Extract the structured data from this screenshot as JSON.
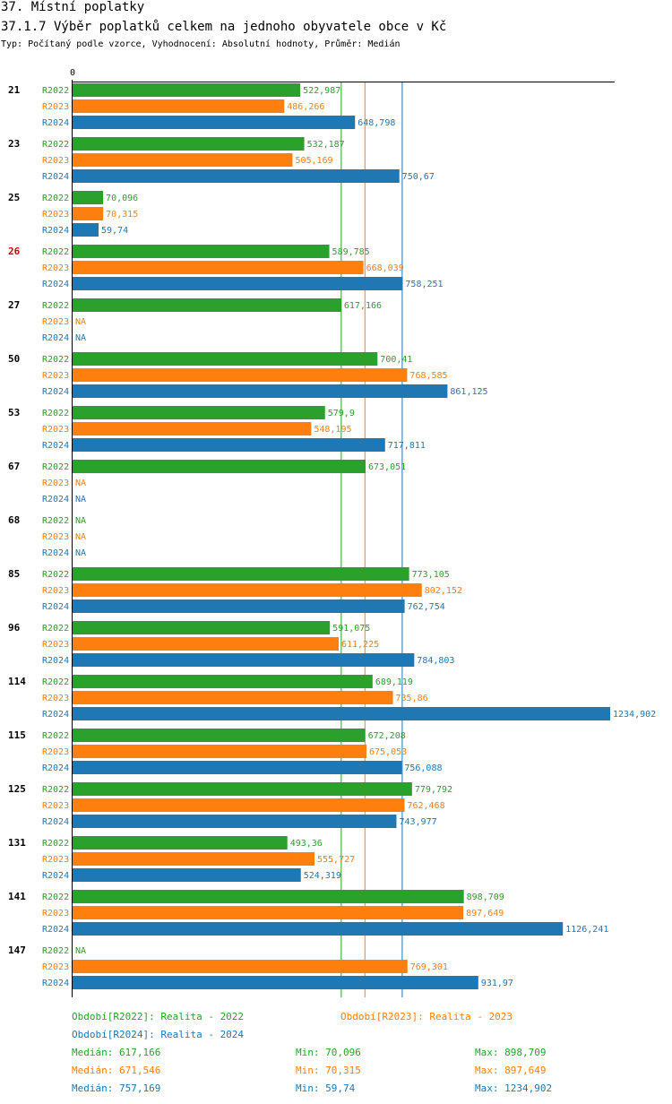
{
  "header": {
    "title": "37. Místní poplatky",
    "subtitle": "37.1.7 Výběr poplatků celkem na jednoho obyvatele obce v  Kč",
    "type_line": "Typ: Počítaný podle vzorce, Vyhodnocení: Absolutní hodnoty, Průměr: Medián"
  },
  "chart_data": {
    "type": "bar",
    "orientation": "horizontal",
    "axis_zero_label": "0",
    "xlim": [
      0,
      1234.902
    ],
    "colors": {
      "R2022": "#2ca02c",
      "R2023": "#ff7f0e",
      "R2024": "#1f77b4"
    },
    "highlight_color": "#cc0000",
    "na_label": "NA",
    "series_names": [
      "R2022",
      "R2023",
      "R2024"
    ],
    "groups": [
      {
        "label": "21",
        "highlight": false,
        "values": [
          522.987,
          486.266,
          648.798
        ],
        "labels": [
          "522,987",
          "486,266",
          "648,798"
        ]
      },
      {
        "label": "23",
        "highlight": false,
        "values": [
          532.187,
          505.169,
          750.67
        ],
        "labels": [
          "532,187",
          "505,169",
          "750,67"
        ]
      },
      {
        "label": "25",
        "highlight": false,
        "values": [
          70.096,
          70.315,
          59.74
        ],
        "labels": [
          "70,096",
          "70,315",
          "59,74"
        ]
      },
      {
        "label": "26",
        "highlight": true,
        "values": [
          589.785,
          668.039,
          758.251
        ],
        "labels": [
          "589,785",
          "668,039",
          "758,251"
        ]
      },
      {
        "label": "27",
        "highlight": false,
        "values": [
          617.166,
          null,
          null
        ],
        "labels": [
          "617,166",
          "NA",
          "NA"
        ]
      },
      {
        "label": "50",
        "highlight": false,
        "values": [
          700.41,
          768.585,
          861.125
        ],
        "labels": [
          "700,41",
          "768,585",
          "861,125"
        ]
      },
      {
        "label": "53",
        "highlight": false,
        "values": [
          579.9,
          548.195,
          717.811
        ],
        "labels": [
          "579,9",
          "548,195",
          "717,811"
        ]
      },
      {
        "label": "67",
        "highlight": false,
        "values": [
          673.051,
          null,
          null
        ],
        "labels": [
          "673,051",
          "NA",
          "NA"
        ]
      },
      {
        "label": "68",
        "highlight": false,
        "values": [
          null,
          null,
          null
        ],
        "labels": [
          "NA",
          "NA",
          "NA"
        ]
      },
      {
        "label": "85",
        "highlight": false,
        "values": [
          773.105,
          802.152,
          762.754
        ],
        "labels": [
          "773,105",
          "802,152",
          "762,754"
        ]
      },
      {
        "label": "96",
        "highlight": false,
        "values": [
          591.075,
          611.225,
          784.803
        ],
        "labels": [
          "591,075",
          "611,225",
          "784,803"
        ]
      },
      {
        "label": "114",
        "highlight": false,
        "values": [
          689.119,
          735.86,
          1234.902
        ],
        "labels": [
          "689,119",
          "735,86",
          "1234,902"
        ]
      },
      {
        "label": "115",
        "highlight": false,
        "values": [
          672.208,
          675.053,
          756.088
        ],
        "labels": [
          "672,208",
          "675,053",
          "756,088"
        ]
      },
      {
        "label": "125",
        "highlight": false,
        "values": [
          779.792,
          762.468,
          743.977
        ],
        "labels": [
          "779,792",
          "762,468",
          "743,977"
        ]
      },
      {
        "label": "131",
        "highlight": false,
        "values": [
          493.36,
          555.727,
          524.319
        ],
        "labels": [
          "493,36",
          "555,727",
          "524,319"
        ]
      },
      {
        "label": "141",
        "highlight": false,
        "values": [
          898.709,
          897.649,
          1126.241
        ],
        "labels": [
          "898,709",
          "897,649",
          "1126,241"
        ]
      },
      {
        "label": "147",
        "highlight": false,
        "values": [
          null,
          769.301,
          931.97
        ],
        "labels": [
          "NA",
          "769,301",
          "931,97"
        ]
      }
    ],
    "median_lines": [
      617.166,
      671.546,
      757.169
    ]
  },
  "legend": {
    "period_2022": "Období[R2022]: Realita - 2022",
    "period_2023": "Období[R2023]: Realita - 2023",
    "period_2024": "Období[R2024]: Realita - 2024"
  },
  "stats": {
    "r2022": {
      "median": "Medián: 617,166",
      "min": "Min: 70,096",
      "max": "Max: 898,709"
    },
    "r2023": {
      "median": "Medián: 671,546",
      "min": "Min: 70,315",
      "max": "Max: 897,649"
    },
    "r2024": {
      "median": "Medián: 757,169",
      "min": "Min: 59,74",
      "max": "Max: 1234,902"
    }
  }
}
